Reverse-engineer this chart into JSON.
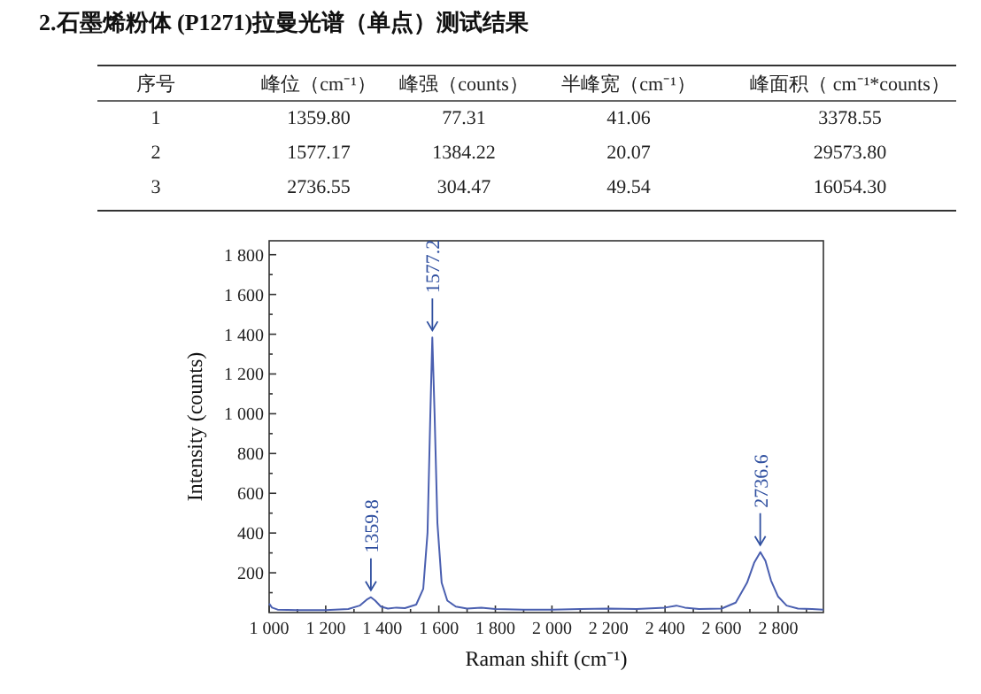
{
  "chart_data": {
    "type": "line",
    "title": "2.石墨烯粉体 (P1271)拉曼光谱（单点）测试结果",
    "xlabel": "Raman shift (cm⁻¹)",
    "ylabel": "Intensity (counts)",
    "x": [
      1000,
      1010,
      1030,
      1100,
      1200,
      1280,
      1320,
      1345,
      1360,
      1375,
      1395,
      1420,
      1450,
      1480,
      1520,
      1545,
      1560,
      1570,
      1577,
      1585,
      1595,
      1610,
      1630,
      1660,
      1700,
      1750,
      1800,
      1900,
      2000,
      2100,
      2200,
      2300,
      2400,
      2440,
      2470,
      2520,
      2600,
      2650,
      2690,
      2715,
      2737,
      2755,
      2775,
      2800,
      2830,
      2870,
      2920,
      2960
    ],
    "series": [
      {
        "color": "#4a5fb0",
        "values": [
          45,
          25,
          15,
          12,
          12,
          18,
          35,
          65,
          77,
          60,
          30,
          20,
          25,
          22,
          40,
          120,
          400,
          1000,
          1384,
          1000,
          450,
          150,
          60,
          30,
          20,
          25,
          18,
          15,
          15,
          18,
          20,
          18,
          25,
          35,
          25,
          18,
          20,
          50,
          150,
          250,
          304,
          260,
          160,
          80,
          35,
          20,
          18,
          15
        ]
      }
    ],
    "xlim": [
      1000,
      2960
    ],
    "ylim": [
      0,
      1870
    ],
    "xticks": [
      {
        "value": 1000,
        "label": "1 000"
      },
      {
        "value": 1100,
        "label": null
      },
      {
        "value": 1200,
        "label": "1 200"
      },
      {
        "value": 1300,
        "label": null
      },
      {
        "value": 1400,
        "label": "1 400"
      },
      {
        "value": 1500,
        "label": null
      },
      {
        "value": 1600,
        "label": "1 600"
      },
      {
        "value": 1700,
        "label": null
      },
      {
        "value": 1800,
        "label": "1 800"
      },
      {
        "value": 1900,
        "label": null
      },
      {
        "value": 2000,
        "label": "2 000"
      },
      {
        "value": 2100,
        "label": null
      },
      {
        "value": 2200,
        "label": "2 200"
      },
      {
        "value": 2300,
        "label": null
      },
      {
        "value": 2400,
        "label": "2 400"
      },
      {
        "value": 2500,
        "label": null
      },
      {
        "value": 2600,
        "label": "2 600"
      },
      {
        "value": 2700,
        "label": null
      },
      {
        "value": 2800,
        "label": "2 800"
      },
      {
        "value": 2900,
        "label": null
      }
    ],
    "yticks": [
      {
        "value": 100,
        "label": null
      },
      200,
      {
        "value": 300,
        "label": null
      },
      400,
      {
        "value": 500,
        "label": null
      },
      600,
      {
        "value": 700,
        "label": null
      },
      800,
      {
        "value": 900,
        "label": null
      },
      {
        "value": 1000,
        "label": "1 000"
      },
      {
        "value": 1100,
        "label": null
      },
      {
        "value": 1200,
        "label": "1 200"
      },
      {
        "value": 1300,
        "label": null
      },
      {
        "value": 1400,
        "label": "1 400"
      },
      {
        "value": 1500,
        "label": null
      },
      {
        "value": 1600,
        "label": "1 600"
      },
      {
        "value": 1700,
        "label": null
      },
      {
        "value": 1800,
        "label": "1 800"
      }
    ],
    "grid": false,
    "annotations": [
      {
        "text": "1359.8",
        "x": 1359.8,
        "y": 77
      },
      {
        "text": "1577.2",
        "x": 1577.2,
        "y": 1384
      },
      {
        "text": "2736.6",
        "x": 2736.6,
        "y": 304
      },
      "序号",
      "峰位（cm⁻¹）",
      "峰强（counts）",
      "半峰宽（cm⁻¹）",
      "峰面积（ cm⁻¹*counts）",
      "1",
      "1359.80",
      "77.31",
      "41.06",
      "3378.55",
      "2",
      "1577.17",
      "1384.22",
      "20.07",
      "29573.80",
      "3",
      "2736.55",
      "304.47",
      "49.54",
      "16054.30"
    ]
  }
}
